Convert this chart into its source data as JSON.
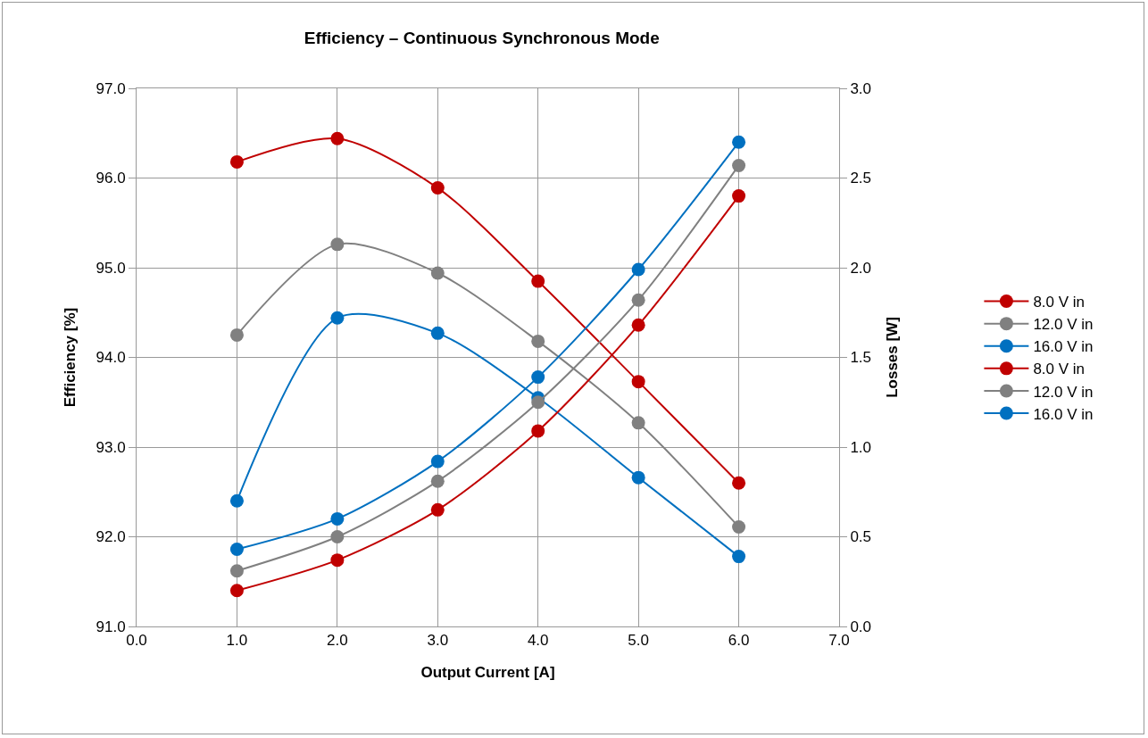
{
  "chart_data": {
    "type": "line",
    "title": "Efficiency – Continuous Synchronous Mode",
    "xlabel": "Output Current [A]",
    "ylabel": "Efficiency [%]",
    "y2label": "Losses [W]",
    "x": [
      1,
      2,
      3,
      4,
      5,
      6
    ],
    "series": [
      {
        "name": "8.0 V in",
        "color": "#c00000",
        "values": [
          96.18,
          96.44,
          95.89,
          94.85,
          93.73,
          92.6
        ]
      },
      {
        "name": "12.0 V in",
        "color": "#808080",
        "values": [
          94.25,
          95.26,
          94.94,
          94.18,
          93.27,
          92.11
        ]
      },
      {
        "name": "16.0 V in",
        "color": "#0070c0",
        "values": [
          92.4,
          94.44,
          94.27,
          93.55,
          92.66,
          91.78
        ]
      },
      {
        "name": "8.0 V in",
        "color": "#c00000",
        "axis": "y2",
        "values": [
          0.2,
          0.37,
          0.65,
          1.09,
          1.68,
          2.4
        ]
      },
      {
        "name": "12.0 V in",
        "color": "#808080",
        "axis": "y2",
        "values": [
          0.31,
          0.5,
          0.81,
          1.25,
          1.82,
          2.57
        ]
      },
      {
        "name": "16.0 V in",
        "color": "#0070c0",
        "axis": "y2",
        "values": [
          0.43,
          0.6,
          0.92,
          1.39,
          1.99,
          2.7
        ]
      }
    ],
    "xlim": [
      0,
      7
    ],
    "xticks": [
      {
        "value": 0,
        "label": "0.0"
      },
      {
        "value": 1,
        "label": "1.0"
      },
      {
        "value": 2,
        "label": "2.0"
      },
      {
        "value": 3,
        "label": "3.0"
      },
      {
        "value": 4,
        "label": "4.0"
      },
      {
        "value": 5,
        "label": "5.0"
      },
      {
        "value": 6,
        "label": "6.0"
      },
      {
        "value": 7,
        "label": "7.0"
      }
    ],
    "ylim": [
      91,
      97
    ],
    "yticks": [
      {
        "value": 91,
        "label": "91.0"
      },
      {
        "value": 92,
        "label": "92.0"
      },
      {
        "value": 93,
        "label": "93.0"
      },
      {
        "value": 94,
        "label": "94.0"
      },
      {
        "value": 95,
        "label": "95.0"
      },
      {
        "value": 96,
        "label": "96.0"
      },
      {
        "value": 97,
        "label": "97.0"
      }
    ],
    "y2lim": [
      0,
      3
    ],
    "y2ticks": [
      {
        "value": 0,
        "label": "0.0"
      },
      {
        "value": 0.5,
        "label": "0.5"
      },
      {
        "value": 1,
        "label": "1.0"
      },
      {
        "value": 1.5,
        "label": "1.5"
      },
      {
        "value": 2,
        "label": "2.0"
      },
      {
        "value": 2.5,
        "label": "2.5"
      },
      {
        "value": 3,
        "label": "3.0"
      }
    ],
    "grid": true,
    "legend": "right",
    "marker": "circle",
    "line_style": "solid"
  }
}
